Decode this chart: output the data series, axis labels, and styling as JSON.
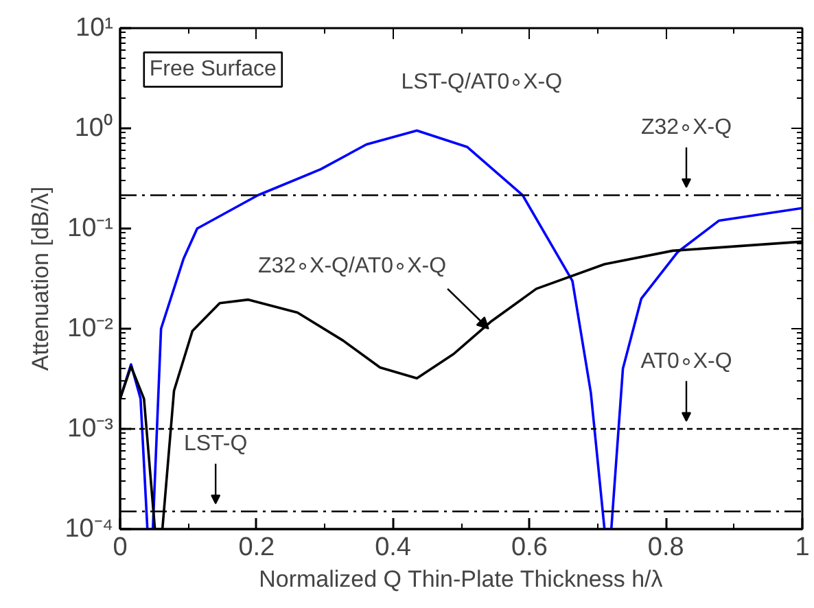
{
  "chart_data": {
    "type": "line",
    "xlabel": "Normalized Q Thin-Plate Thickness h/λ",
    "ylabel": "Attenuation [dB/λ]",
    "log": "y",
    "grid": false,
    "xlim": [
      0,
      1
    ],
    "ylim": [
      0.0001,
      10
    ],
    "xticks": [
      {
        "value": 0,
        "label": "0"
      },
      0.2,
      0.4,
      0.6,
      0.8,
      {
        "value": 1,
        "label": "1"
      }
    ],
    "yticks": [
      {
        "value": 0.0001,
        "label": "10⁻⁴"
      },
      {
        "value": 0.001,
        "label": "10⁻³"
      },
      {
        "value": 0.01,
        "label": "10⁻²"
      },
      {
        "value": 0.1,
        "label": "10⁻¹"
      },
      {
        "value": 1,
        "label": "10⁰"
      },
      {
        "value": 10,
        "label": "10¹"
      }
    ],
    "series": [
      {
        "name": "LST-Q/AT0∘X-Q",
        "color": "#0000ff",
        "x": [
          0,
          0.016,
          0.03,
          0.04,
          0.048,
          0.06,
          0.093,
          0.113,
          0.202,
          0.294,
          0.361,
          0.435,
          0.509,
          0.59,
          0.663,
          0.69,
          0.71,
          0.72,
          0.737,
          0.764,
          0.817,
          0.878,
          1.0
        ],
        "values": [
          0.002,
          0.0044,
          0.002,
          0.0001,
          0.0001,
          0.01,
          0.05,
          0.1,
          0.215,
          0.39,
          0.69,
          0.95,
          0.65,
          0.215,
          0.03,
          0.0023,
          0.0001,
          0.0001,
          0.004,
          0.02,
          0.058,
          0.12,
          0.16
        ]
      },
      {
        "name": "Z32∘X-Q/AT0∘X-Q",
        "color": "#000000",
        "x": [
          0,
          0.016,
          0.035,
          0.051,
          0.062,
          0.079,
          0.106,
          0.146,
          0.188,
          0.26,
          0.327,
          0.381,
          0.435,
          0.489,
          0.543,
          0.61,
          0.71,
          0.81,
          1.0
        ],
        "values": [
          0.002,
          0.0042,
          0.002,
          0.0001,
          0.0001,
          0.0024,
          0.0095,
          0.018,
          0.0195,
          0.0145,
          0.0076,
          0.0041,
          0.0032,
          0.0056,
          0.0117,
          0.025,
          0.044,
          0.06,
          0.074
        ]
      }
    ],
    "ref_lines": [
      {
        "axis": "y",
        "value": 0.215,
        "label": "Z32∘X-Q",
        "color": "#000000",
        "line_style": "dashdot"
      },
      {
        "axis": "y",
        "value": 0.001,
        "label": "AT0∘X-Q",
        "color": "#000000",
        "line_style": "dashed"
      },
      {
        "axis": "y",
        "value": 0.00015,
        "label": "LST-Q",
        "color": "#000000",
        "line_style": "dashdot"
      }
    ],
    "annotations": [
      "Free Surface"
    ]
  }
}
